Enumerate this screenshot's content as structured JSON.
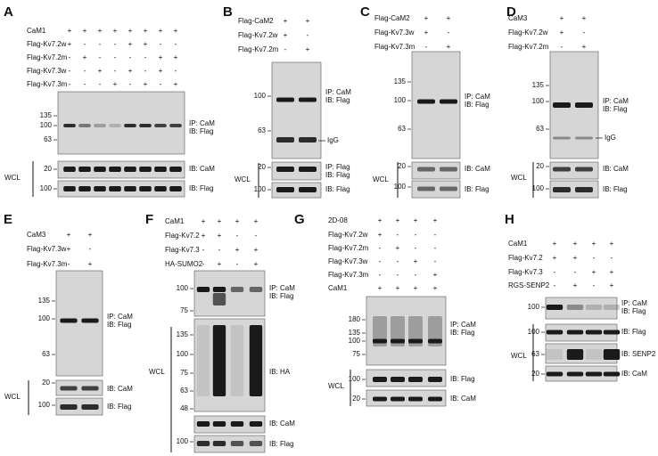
{
  "panels": [
    {
      "letter": "A",
      "treatments": [
        {
          "label": "CaM1",
          "signs": [
            "+",
            "+",
            "+",
            "+",
            "+",
            "+",
            "+",
            "+"
          ]
        },
        {
          "label": "Flag-Kv7.2w",
          "signs": [
            "+",
            "-",
            "-",
            "-",
            "+",
            "+",
            "-",
            "-"
          ]
        },
        {
          "label": "Flag-Kv7.2m",
          "signs": [
            "-",
            "+",
            "-",
            "-",
            "-",
            "-",
            "+",
            "+"
          ]
        },
        {
          "label": "Flag-Kv7.3w",
          "signs": [
            "-",
            "-",
            "+",
            "-",
            "+",
            "-",
            "+",
            "-"
          ]
        },
        {
          "label": "Flag-Kv7.3m",
          "signs": [
            "-",
            "-",
            "-",
            "+",
            "-",
            "+",
            "-",
            "+"
          ]
        }
      ],
      "blots": [
        {
          "markers": [
            135,
            100,
            63
          ],
          "labels": [
            "IP: CaM",
            "IB: Flag"
          ]
        },
        {
          "markers": [
            20
          ],
          "labels": [
            "IB: CaM"
          ]
        },
        {
          "markers": [
            100
          ],
          "labels": [
            "IB: Flag"
          ]
        }
      ],
      "wcl": "WCL"
    },
    {
      "letter": "B",
      "treatments": [
        {
          "label": "Flag-CaM2",
          "signs": [
            "+",
            "+"
          ]
        },
        {
          "label": "Flag-Kv7.2w",
          "signs": [
            "+",
            "-"
          ]
        },
        {
          "label": "Flag-Kv7.2m",
          "signs": [
            "-",
            "+"
          ]
        }
      ],
      "blots": [
        {
          "markers": [
            100,
            63
          ],
          "labels": [
            "IP: CaM",
            "IB: Flag"
          ],
          "band_label": "IgG"
        },
        {
          "markers": [
            20
          ],
          "labels": [
            "IP: Flag",
            "IB: Flag"
          ]
        },
        {
          "markers": [
            100
          ],
          "labels": [
            "IB: Flag"
          ]
        }
      ],
      "wcl": "WCL"
    },
    {
      "letter": "C",
      "treatments": [
        {
          "label": "Flag-CaM2",
          "signs": [
            "+",
            "+"
          ]
        },
        {
          "label": "Flag-Kv7.3w",
          "signs": [
            "+",
            "-"
          ]
        },
        {
          "label": "Flag-Kv7.3m",
          "signs": [
            "-",
            "+"
          ]
        }
      ],
      "blots": [
        {
          "markers": [
            135,
            100,
            63
          ],
          "labels": [
            "IP: CaM",
            "IB: Flag"
          ]
        },
        {
          "markers": [
            20
          ],
          "labels": [
            "IB: CaM"
          ]
        },
        {
          "markers": [
            100
          ],
          "labels": [
            "IB: Flag"
          ]
        }
      ],
      "wcl": "WCL"
    },
    {
      "letter": "D",
      "treatments": [
        {
          "label": "CaM3",
          "signs": [
            "+",
            "+"
          ]
        },
        {
          "label": "Flag-Kv7.2w",
          "signs": [
            "+",
            "-"
          ]
        },
        {
          "label": "Flag-Kv7.2m",
          "signs": [
            "-",
            "+"
          ]
        }
      ],
      "blots": [
        {
          "markers": [
            135,
            100,
            63
          ],
          "labels": [
            "IP: CaM",
            "IB: Flag"
          ],
          "band_label": "IgG"
        },
        {
          "markers": [
            20
          ],
          "labels": [
            "IB: CaM"
          ]
        },
        {
          "markers": [
            100
          ],
          "labels": [
            "IB: Flag"
          ]
        }
      ],
      "wcl": "WCL"
    },
    {
      "letter": "E",
      "treatments": [
        {
          "label": "CaM3",
          "signs": [
            "+",
            "+"
          ]
        },
        {
          "label": "Flag-Kv7.3w",
          "signs": [
            "+",
            "-"
          ]
        },
        {
          "label": "Flag-Kv7.3m",
          "signs": [
            "-",
            "+"
          ]
        }
      ],
      "blots": [
        {
          "markers": [
            135,
            100,
            63
          ],
          "labels": [
            "IP: CaM",
            "IB: Flag"
          ]
        },
        {
          "markers": [
            20
          ],
          "labels": [
            "IB: CaM"
          ]
        },
        {
          "markers": [
            100
          ],
          "labels": [
            "IB: Flag"
          ]
        }
      ],
      "wcl": "WCL"
    },
    {
      "letter": "F",
      "treatments": [
        {
          "label": "CaM1",
          "signs": [
            "+",
            "+",
            "+",
            "+"
          ]
        },
        {
          "label": "Flag-Kv7.2",
          "signs": [
            "+",
            "+",
            "-",
            "-"
          ]
        },
        {
          "label": "Flag-Kv7.3",
          "signs": [
            "-",
            "-",
            "+",
            "+"
          ]
        },
        {
          "label": "HA-SUMO2",
          "signs": [
            "-",
            "+",
            "-",
            "+"
          ]
        }
      ],
      "blots": [
        {
          "markers": [
            100,
            75
          ],
          "labels": [
            "IP: CaM",
            "IB: Flag"
          ]
        },
        {
          "markers": [
            135,
            100,
            75,
            63,
            48
          ],
          "labels": [
            "IB: HA"
          ]
        },
        {
          "markers": [],
          "labels": [
            "IB: CaM"
          ]
        },
        {
          "markers": [
            100
          ],
          "labels": [
            "IB: Flag"
          ]
        }
      ],
      "wcl": "WCL"
    },
    {
      "letter": "G",
      "treatments": [
        {
          "label": "2D-08",
          "signs": [
            "+",
            "+",
            "+",
            "+"
          ]
        },
        {
          "label": "Flag-Kv7.2w",
          "signs": [
            "+",
            "-",
            "-",
            "-"
          ]
        },
        {
          "label": "Flag-Kv7.2m",
          "signs": [
            "-",
            "+",
            "-",
            "-"
          ]
        },
        {
          "label": "Flag-Kv7.3w",
          "signs": [
            "-",
            "-",
            "+",
            "-"
          ]
        },
        {
          "label": "Flag-Kv7.3m",
          "signs": [
            "-",
            "-",
            "-",
            "+"
          ]
        },
        {
          "label": "CaM1",
          "signs": [
            "+",
            "+",
            "+",
            "+"
          ]
        }
      ],
      "blots": [
        {
          "markers": [
            180,
            135,
            100,
            75
          ],
          "labels": [
            "IP: CaM",
            "IB: Flag"
          ]
        },
        {
          "markers": [
            100
          ],
          "labels": [
            "IB: Flag"
          ]
        },
        {
          "markers": [
            20
          ],
          "labels": [
            "IB: CaM"
          ]
        }
      ],
      "wcl": "WCL"
    },
    {
      "letter": "H",
      "treatments": [
        {
          "label": "CaM1",
          "signs": [
            "+",
            "+",
            "+",
            "+"
          ]
        },
        {
          "label": "Flag-Kv7.2",
          "signs": [
            "+",
            "+",
            "-",
            "-"
          ]
        },
        {
          "label": "Flag-Kv7.3",
          "signs": [
            "-",
            "-",
            "+",
            "+"
          ]
        },
        {
          "label": "RGS-SENP2",
          "signs": [
            "-",
            "+",
            "-",
            "+"
          ]
        }
      ],
      "blots": [
        {
          "markers": [
            100
          ],
          "labels": [
            "IP: CaM",
            "IB: Flag"
          ]
        },
        {
          "markers": [
            100
          ],
          "labels": [
            "IB: Flag"
          ]
        },
        {
          "markers": [
            63
          ],
          "labels": [
            "IB: SENP2"
          ]
        },
        {
          "markers": [
            20
          ],
          "labels": [
            "IB: CaM"
          ]
        }
      ],
      "wcl": "WCL"
    }
  ]
}
